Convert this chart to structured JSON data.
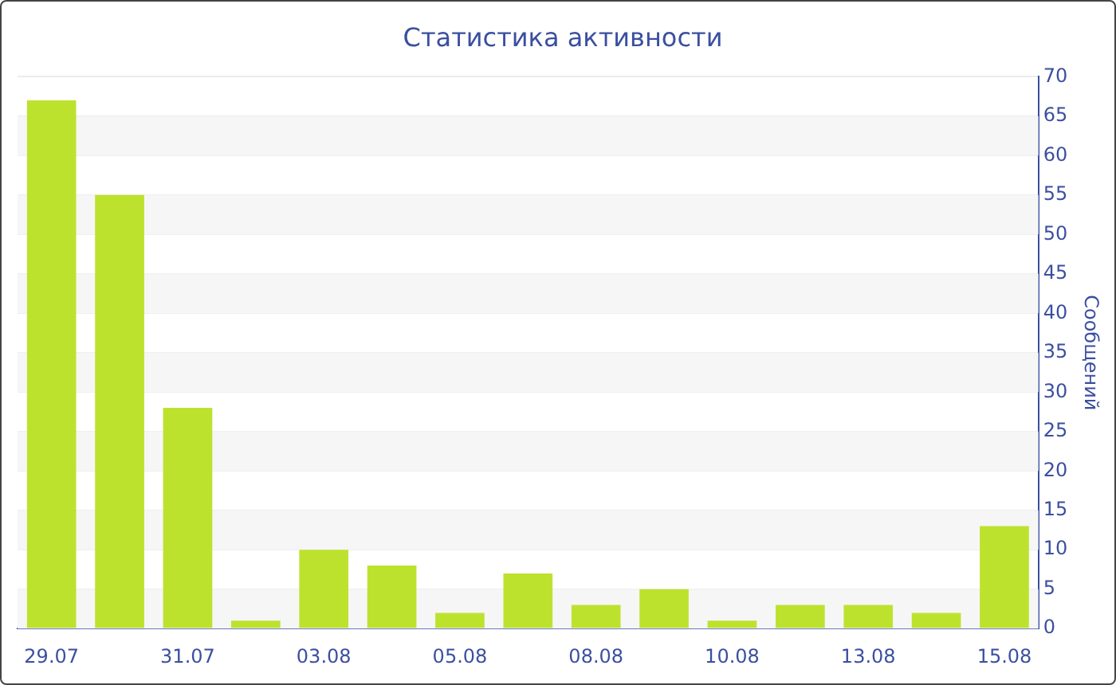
{
  "chart_data": {
    "type": "bar",
    "title": "Статистика активности",
    "ylabel": "Сообщений",
    "categories": [
      "29.07",
      null,
      "31.07",
      null,
      "03.08",
      null,
      "05.08",
      null,
      "08.08",
      null,
      "10.08",
      null,
      "13.08",
      null,
      "15.08"
    ],
    "values": [
      67,
      55,
      28,
      1,
      10,
      8,
      2,
      7,
      3,
      5,
      1,
      3,
      3,
      2,
      13
    ],
    "color": "#bde22e",
    "ylim": [
      0,
      70
    ],
    "yticks": [
      0,
      5,
      10,
      15,
      20,
      25,
      30,
      35,
      40,
      45,
      50,
      55,
      60,
      65,
      70
    ],
    "grid": "y",
    "legend": false
  }
}
